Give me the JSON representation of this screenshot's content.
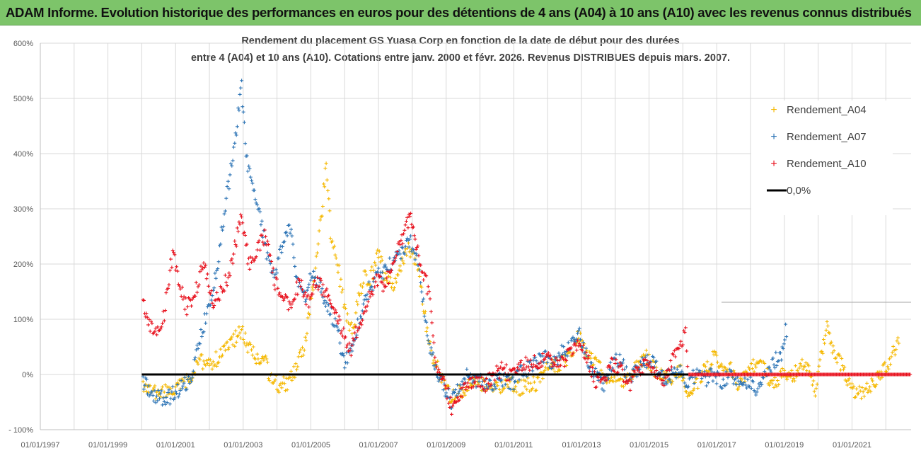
{
  "header": {
    "banner_title": "ADAM Informe. Evolution historique des performances en euros pour des détentions de 4 ans (A04) à 10 ans (A10) avec les revenus connus distribués"
  },
  "chart_data": {
    "type": "scatter",
    "title_line1": "Rendement du placement GS Yuasa Corp en fonction de la date de début pour des durées",
    "title_line2": "entre 4 (A04) et 10 ans (A10). Cotations entre janv. 2000 et févr. 2026. Revenus DISTRIBUES depuis mars. 2007.",
    "xlabel": "",
    "ylabel": "",
    "x_range": [
      "1997-01-01",
      "2022-10-01"
    ],
    "y_range": [
      -100,
      600
    ],
    "x_tick_labels": [
      "01/01/1997",
      "01/01/1999",
      "01/01/2001",
      "01/01/2003",
      "01/01/2005",
      "01/01/2007",
      "01/01/2009",
      "01/01/2011",
      "01/01/2013",
      "01/01/2015",
      "01/01/2017",
      "01/01/2019",
      "01/01/2021"
    ],
    "x_gridlines_years": [
      1997,
      1998,
      1999,
      2000,
      2001,
      2002,
      2003,
      2004,
      2005,
      2006,
      2007,
      2008,
      2009,
      2010,
      2011,
      2012,
      2013,
      2014,
      2015,
      2016,
      2017,
      2018,
      2019,
      2020,
      2021,
      2022
    ],
    "y_ticks": [
      -100,
      0,
      100,
      200,
      300,
      400,
      500,
      600
    ],
    "y_tick_labels": [
      "- 100%",
      "0%",
      "100%",
      "200%",
      "300%",
      "400%",
      "500%",
      "600%"
    ],
    "grid": true,
    "legend_position": "top-right",
    "series": [
      {
        "name": "Rendement_A04",
        "color": "#f5b800",
        "marker": "plus",
        "points": [
          [
            "2000-01-15",
            -20
          ],
          [
            "2000-04-01",
            -30
          ],
          [
            "2000-07-01",
            -35
          ],
          [
            "2000-10-01",
            -32
          ],
          [
            "2001-01-01",
            -28
          ],
          [
            "2001-03-01",
            -20
          ],
          [
            "2001-06-01",
            -10
          ],
          [
            "2001-08-01",
            10
          ],
          [
            "2001-10-01",
            25
          ],
          [
            "2002-01-01",
            20
          ],
          [
            "2002-04-01",
            30
          ],
          [
            "2002-07-01",
            45
          ],
          [
            "2002-10-01",
            65
          ],
          [
            "2002-12-15",
            80
          ],
          [
            "2003-03-01",
            50
          ],
          [
            "2003-06-01",
            30
          ],
          [
            "2003-09-01",
            20
          ],
          [
            "2003-11-01",
            -10
          ],
          [
            "2004-02-01",
            -20
          ],
          [
            "2004-05-01",
            -15
          ],
          [
            "2004-08-01",
            10
          ],
          [
            "2004-11-01",
            60
          ],
          [
            "2005-01-15",
            150
          ],
          [
            "2005-03-01",
            200
          ],
          [
            "2005-05-01",
            300
          ],
          [
            "2005-06-15",
            390
          ],
          [
            "2005-08-01",
            260
          ],
          [
            "2005-10-01",
            220
          ],
          [
            "2005-12-01",
            150
          ],
          [
            "2006-02-01",
            100
          ],
          [
            "2006-04-01",
            80
          ],
          [
            "2006-06-01",
            140
          ],
          [
            "2006-08-01",
            180
          ],
          [
            "2006-10-01",
            170
          ],
          [
            "2007-01-01",
            220
          ],
          [
            "2007-03-01",
            180
          ],
          [
            "2007-06-01",
            160
          ],
          [
            "2007-09-01",
            200
          ],
          [
            "2007-12-01",
            230
          ],
          [
            "2008-03-01",
            200
          ],
          [
            "2008-05-01",
            120
          ],
          [
            "2008-07-01",
            60
          ],
          [
            "2008-09-01",
            20
          ],
          [
            "2008-12-01",
            -10
          ],
          [
            "2009-03-01",
            -45
          ],
          [
            "2009-06-01",
            -30
          ],
          [
            "2009-09-01",
            -20
          ],
          [
            "2009-12-01",
            -10
          ],
          [
            "2010-03-01",
            -20
          ],
          [
            "2010-06-01",
            -25
          ],
          [
            "2010-09-01",
            -20
          ],
          [
            "2010-12-01",
            -15
          ],
          [
            "2011-03-01",
            -25
          ],
          [
            "2011-06-01",
            -20
          ],
          [
            "2011-09-01",
            -15
          ],
          [
            "2011-12-01",
            10
          ],
          [
            "2012-03-01",
            15
          ],
          [
            "2012-06-01",
            20
          ],
          [
            "2012-09-01",
            30
          ],
          [
            "2012-12-01",
            70
          ],
          [
            "2013-03-01",
            40
          ],
          [
            "2013-06-01",
            20
          ],
          [
            "2013-09-01",
            0
          ],
          [
            "2013-12-01",
            -10
          ],
          [
            "2014-03-01",
            -15
          ],
          [
            "2014-06-01",
            -10
          ],
          [
            "2014-09-01",
            20
          ],
          [
            "2014-12-01",
            30
          ],
          [
            "2015-03-01",
            10
          ],
          [
            "2015-06-01",
            0
          ],
          [
            "2015-09-01",
            -5
          ],
          [
            "2015-12-01",
            10
          ],
          [
            "2016-03-01",
            -40
          ],
          [
            "2016-06-01",
            -15
          ],
          [
            "2016-09-01",
            10
          ],
          [
            "2016-12-01",
            30
          ],
          [
            "2017-03-01",
            20
          ],
          [
            "2017-06-01",
            10
          ],
          [
            "2017-09-01",
            -20
          ],
          [
            "2017-12-01",
            0
          ],
          [
            "2018-03-01",
            20
          ],
          [
            "2018-06-01",
            10
          ],
          [
            "2018-09-01",
            -20
          ],
          [
            "2018-12-01",
            0
          ],
          [
            "2019-03-01",
            -10
          ],
          [
            "2019-06-01",
            10
          ],
          [
            "2019-09-01",
            20
          ],
          [
            "2019-12-01",
            -30
          ],
          [
            "2020-03-01",
            60
          ],
          [
            "2020-04-15",
            100
          ],
          [
            "2020-06-01",
            40
          ],
          [
            "2020-09-01",
            20
          ],
          [
            "2020-12-01",
            -20
          ],
          [
            "2021-03-01",
            -35
          ],
          [
            "2021-06-01",
            -25
          ],
          [
            "2021-09-01",
            -20
          ],
          [
            "2021-12-01",
            10
          ],
          [
            "2022-03-01",
            30
          ],
          [
            "2022-06-01",
            70
          ]
        ]
      },
      {
        "name": "Rendement_A07",
        "color": "#2e75b6",
        "marker": "plus",
        "points": [
          [
            "2000-01-15",
            -10
          ],
          [
            "2000-04-01",
            -35
          ],
          [
            "2000-07-01",
            -40
          ],
          [
            "2000-10-01",
            -45
          ],
          [
            "2001-01-01",
            -30
          ],
          [
            "2001-04-01",
            -20
          ],
          [
            "2001-07-01",
            0
          ],
          [
            "2001-09-01",
            50
          ],
          [
            "2001-11-01",
            90
          ],
          [
            "2002-02-01",
            150
          ],
          [
            "2002-04-01",
            200
          ],
          [
            "2002-06-01",
            280
          ],
          [
            "2002-08-01",
            350
          ],
          [
            "2002-10-01",
            420
          ],
          [
            "2002-12-15",
            520
          ],
          [
            "2003-02-01",
            400
          ],
          [
            "2003-04-01",
            340
          ],
          [
            "2003-06-01",
            320
          ],
          [
            "2003-08-01",
            260
          ],
          [
            "2003-10-01",
            200
          ],
          [
            "2003-12-01",
            180
          ],
          [
            "2004-03-01",
            230
          ],
          [
            "2004-06-01",
            270
          ],
          [
            "2004-08-01",
            170
          ],
          [
            "2004-11-01",
            140
          ],
          [
            "2005-01-01",
            180
          ],
          [
            "2005-04-01",
            160
          ],
          [
            "2005-07-01",
            120
          ],
          [
            "2005-10-01",
            90
          ],
          [
            "2006-01-01",
            20
          ],
          [
            "2006-04-01",
            60
          ],
          [
            "2006-07-01",
            110
          ],
          [
            "2006-10-01",
            160
          ],
          [
            "2007-01-01",
            180
          ],
          [
            "2007-04-01",
            190
          ],
          [
            "2007-07-01",
            210
          ],
          [
            "2007-10-01",
            230
          ],
          [
            "2007-12-15",
            240
          ],
          [
            "2008-03-01",
            200
          ],
          [
            "2008-05-01",
            130
          ],
          [
            "2008-07-01",
            60
          ],
          [
            "2008-09-01",
            10
          ],
          [
            "2008-12-01",
            -20
          ],
          [
            "2009-03-01",
            -50
          ],
          [
            "2009-06-01",
            -20
          ],
          [
            "2009-09-01",
            0
          ],
          [
            "2009-12-01",
            -10
          ],
          [
            "2010-03-01",
            -20
          ],
          [
            "2010-06-01",
            -15
          ],
          [
            "2010-09-01",
            -10
          ],
          [
            "2010-12-01",
            -20
          ],
          [
            "2011-03-01",
            0
          ],
          [
            "2011-06-01",
            10
          ],
          [
            "2011-09-01",
            20
          ],
          [
            "2011-12-01",
            30
          ],
          [
            "2012-03-01",
            20
          ],
          [
            "2012-06-01",
            40
          ],
          [
            "2012-09-01",
            50
          ],
          [
            "2012-12-01",
            75
          ],
          [
            "2013-03-01",
            30
          ],
          [
            "2013-06-01",
            0
          ],
          [
            "2013-09-01",
            -20
          ],
          [
            "2013-12-01",
            20
          ],
          [
            "2014-03-01",
            30
          ],
          [
            "2014-06-01",
            -10
          ],
          [
            "2014-09-01",
            10
          ],
          [
            "2014-12-01",
            25
          ],
          [
            "2015-03-01",
            20
          ],
          [
            "2015-06-01",
            -10
          ],
          [
            "2015-09-01",
            0
          ],
          [
            "2015-12-01",
            10
          ],
          [
            "2016-03-01",
            -20
          ],
          [
            "2016-06-01",
            5
          ],
          [
            "2016-09-01",
            -10
          ],
          [
            "2016-12-01",
            0
          ],
          [
            "2017-03-01",
            -15
          ],
          [
            "2017-06-01",
            0
          ],
          [
            "2017-09-01",
            -20
          ],
          [
            "2017-12-01",
            -10
          ],
          [
            "2018-03-01",
            -25
          ],
          [
            "2018-06-01",
            0
          ],
          [
            "2018-09-01",
            20
          ],
          [
            "2018-12-01",
            40
          ],
          [
            "2019-01-15",
            80
          ],
          [
            "2019-02-01",
            40
          ]
        ]
      },
      {
        "name": "Rendement_A10",
        "color": "#e8121e",
        "marker": "plus",
        "points": [
          [
            "2000-01-15",
            130
          ],
          [
            "2000-03-01",
            100
          ],
          [
            "2000-06-01",
            70
          ],
          [
            "2000-09-01",
            110
          ],
          [
            "2000-12-01",
            220
          ],
          [
            "2001-02-01",
            170
          ],
          [
            "2001-05-01",
            120
          ],
          [
            "2001-08-01",
            150
          ],
          [
            "2001-11-01",
            200
          ],
          [
            "2002-02-01",
            130
          ],
          [
            "2002-05-01",
            150
          ],
          [
            "2002-08-01",
            180
          ],
          [
            "2002-10-01",
            230
          ],
          [
            "2002-12-15",
            290
          ],
          [
            "2003-03-01",
            200
          ],
          [
            "2003-06-01",
            230
          ],
          [
            "2003-09-01",
            250
          ],
          [
            "2003-12-01",
            170
          ],
          [
            "2004-03-01",
            140
          ],
          [
            "2004-06-01",
            120
          ],
          [
            "2004-09-01",
            170
          ],
          [
            "2004-12-01",
            130
          ],
          [
            "2005-03-01",
            170
          ],
          [
            "2005-06-01",
            150
          ],
          [
            "2005-09-01",
            130
          ],
          [
            "2005-12-01",
            80
          ],
          [
            "2006-03-01",
            40
          ],
          [
            "2006-06-01",
            90
          ],
          [
            "2006-09-01",
            130
          ],
          [
            "2006-12-01",
            170
          ],
          [
            "2007-03-01",
            160
          ],
          [
            "2007-06-01",
            190
          ],
          [
            "2007-09-01",
            240
          ],
          [
            "2007-12-15",
            290
          ],
          [
            "2008-03-01",
            220
          ],
          [
            "2008-05-01",
            180
          ],
          [
            "2008-07-01",
            150
          ],
          [
            "2008-09-01",
            30
          ],
          [
            "2008-12-01",
            -10
          ],
          [
            "2009-03-01",
            -60
          ],
          [
            "2009-06-01",
            -30
          ],
          [
            "2009-09-01",
            -20
          ],
          [
            "2009-12-01",
            -10
          ],
          [
            "2010-03-01",
            -20
          ],
          [
            "2010-06-01",
            0
          ],
          [
            "2010-09-01",
            10
          ],
          [
            "2010-12-01",
            -5
          ],
          [
            "2011-03-01",
            10
          ],
          [
            "2011-06-01",
            20
          ],
          [
            "2011-09-01",
            20
          ],
          [
            "2011-12-01",
            30
          ],
          [
            "2012-03-01",
            20
          ],
          [
            "2012-06-01",
            20
          ],
          [
            "2012-09-01",
            40
          ],
          [
            "2012-12-01",
            55
          ],
          [
            "2013-03-01",
            30
          ],
          [
            "2013-06-01",
            -10
          ],
          [
            "2013-09-01",
            -15
          ],
          [
            "2013-12-01",
            20
          ],
          [
            "2014-03-01",
            10
          ],
          [
            "2014-06-01",
            -20
          ],
          [
            "2014-09-01",
            10
          ],
          [
            "2014-12-01",
            20
          ],
          [
            "2015-03-01",
            0
          ],
          [
            "2015-06-01",
            -10
          ],
          [
            "2015-09-01",
            20
          ],
          [
            "2015-12-01",
            50
          ],
          [
            "2016-02-01",
            75
          ],
          [
            "2016-03-01",
            0
          ],
          [
            "2022-10-01",
            0
          ]
        ]
      },
      {
        "name": "0,0%",
        "color": "#000000",
        "marker": "line",
        "points": [
          [
            "2000-01-01",
            0
          ],
          [
            "2016-03-01",
            0
          ]
        ]
      }
    ]
  }
}
